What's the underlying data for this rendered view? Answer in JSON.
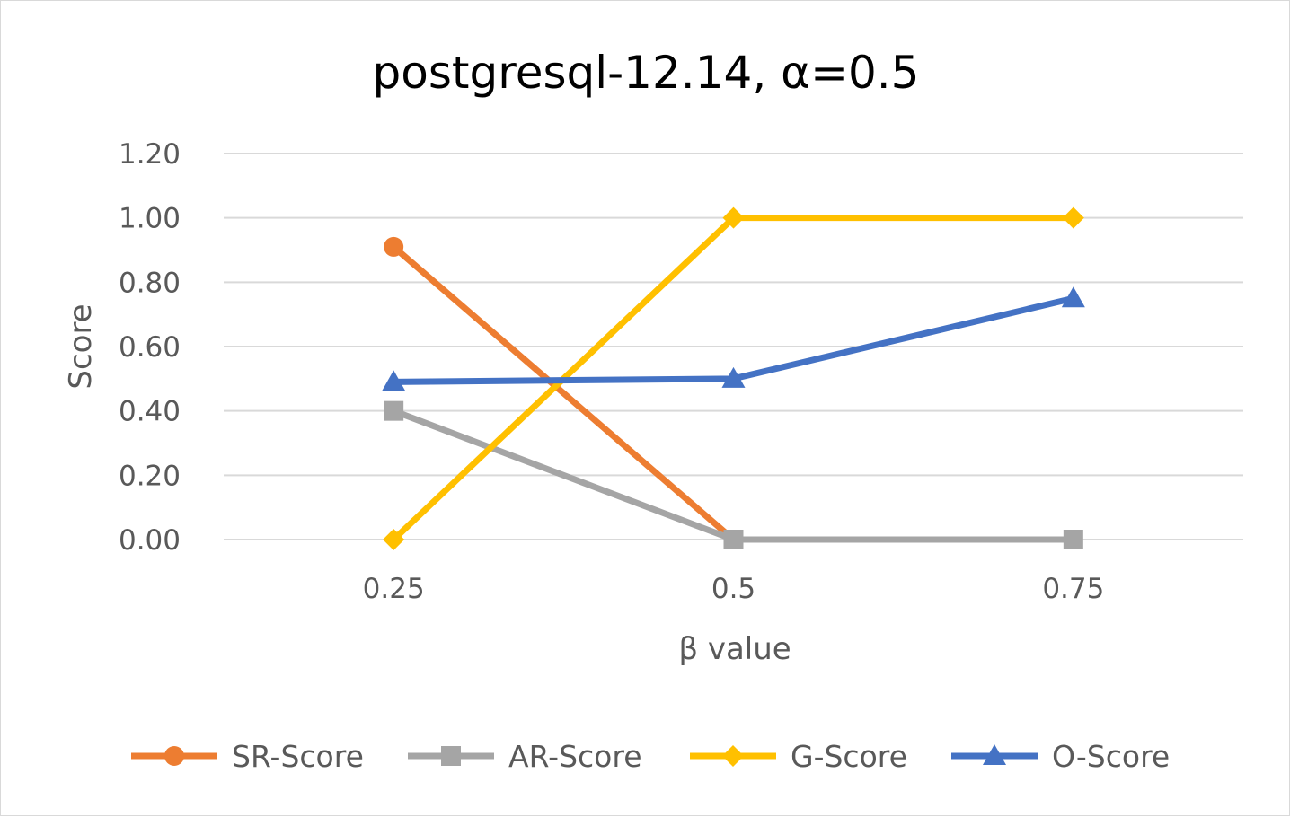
{
  "chart_data": {
    "type": "line",
    "title": "postgresql-12.14, α=0.5",
    "xlabel": "β value",
    "ylabel": "Score",
    "categories": [
      "0.25",
      "0.5",
      "0.75"
    ],
    "ylim": [
      0,
      1.2
    ],
    "yticks": [
      "0.00",
      "0.20",
      "0.40",
      "0.60",
      "0.80",
      "1.00",
      "1.20"
    ],
    "grid": "horizontal",
    "legend_position": "bottom",
    "series": [
      {
        "name": "SR-Score",
        "values": [
          0.91,
          0.0,
          null
        ],
        "color": "#ED7D31",
        "marker": "circle"
      },
      {
        "name": "AR-Score",
        "values": [
          0.4,
          0.0,
          0.0
        ],
        "color": "#A5A5A5",
        "marker": "square"
      },
      {
        "name": "G-Score",
        "values": [
          0.0,
          1.0,
          1.0
        ],
        "color": "#FFC000",
        "marker": "diamond"
      },
      {
        "name": "O-Score",
        "values": [
          0.49,
          0.5,
          0.75
        ],
        "color": "#4472C4",
        "marker": "triangle"
      }
    ]
  }
}
